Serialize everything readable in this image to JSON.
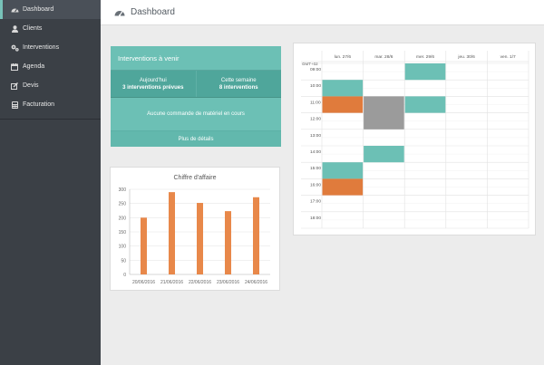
{
  "sidebar": {
    "items": [
      {
        "key": "dashboard",
        "label": "Dashboard",
        "icon": "dashboard-icon",
        "active": true
      },
      {
        "key": "clients",
        "label": "Clients",
        "icon": "user-icon",
        "active": false
      },
      {
        "key": "interventions",
        "label": "Interventions",
        "icon": "gears-icon",
        "active": false
      },
      {
        "key": "agenda",
        "label": "Agenda",
        "icon": "calendar-icon",
        "active": false
      },
      {
        "key": "devis",
        "label": "Devis",
        "icon": "edit-icon",
        "active": false
      },
      {
        "key": "facturation",
        "label": "Facturation",
        "icon": "calculator-icon",
        "active": false
      }
    ]
  },
  "header": {
    "title": "Dashboard",
    "icon": "dashboard-icon"
  },
  "interventions": {
    "title": "Interventions à venir",
    "today_label": "Aujourd'hui",
    "today_value": "3 interventions prévues",
    "week_label": "Cette semaine",
    "week_value": "8 interventions",
    "no_order": "Aucune commande de matériel en cours",
    "more": "Plus de détails"
  },
  "chart_data": {
    "type": "bar",
    "title": "Chiffre d'affaire",
    "categories": [
      "20/06/2016",
      "21/06/2016",
      "22/06/2016",
      "23/06/2016",
      "24/06/2016"
    ],
    "values": [
      200,
      290,
      252,
      223,
      272
    ],
    "ylim": [
      0,
      300
    ],
    "yticks": [
      0,
      50,
      100,
      150,
      200,
      250,
      300
    ],
    "color": "#e8884a",
    "grid": true
  },
  "calendar": {
    "timezone_label": "GMT+02",
    "days": [
      "lun. 27/6",
      "mar. 28/6",
      "mer. 29/6",
      "jeu. 30/6",
      "ven. 1/7"
    ],
    "hours": [
      "09:00",
      "10:00",
      "11:00",
      "12:00",
      "13:00",
      "14:00",
      "15:00",
      "16:00",
      "17:00",
      "18:00"
    ],
    "colors": {
      "teal": "#6cc0b5",
      "orange": "#e07b3c",
      "gray": "#9b9b9b"
    },
    "events": [
      {
        "day": 2,
        "start": 9.0,
        "end": 10.0,
        "color": "teal"
      },
      {
        "day": 0,
        "start": 10.0,
        "end": 11.0,
        "color": "teal"
      },
      {
        "day": 0,
        "start": 11.0,
        "end": 12.0,
        "color": "orange"
      },
      {
        "day": 1,
        "start": 11.0,
        "end": 13.0,
        "color": "gray"
      },
      {
        "day": 2,
        "start": 11.0,
        "end": 12.0,
        "color": "teal"
      },
      {
        "day": 1,
        "start": 14.0,
        "end": 15.0,
        "color": "teal"
      },
      {
        "day": 0,
        "start": 15.0,
        "end": 16.0,
        "color": "teal"
      },
      {
        "day": 0,
        "start": 16.0,
        "end": 17.0,
        "color": "orange"
      }
    ]
  }
}
